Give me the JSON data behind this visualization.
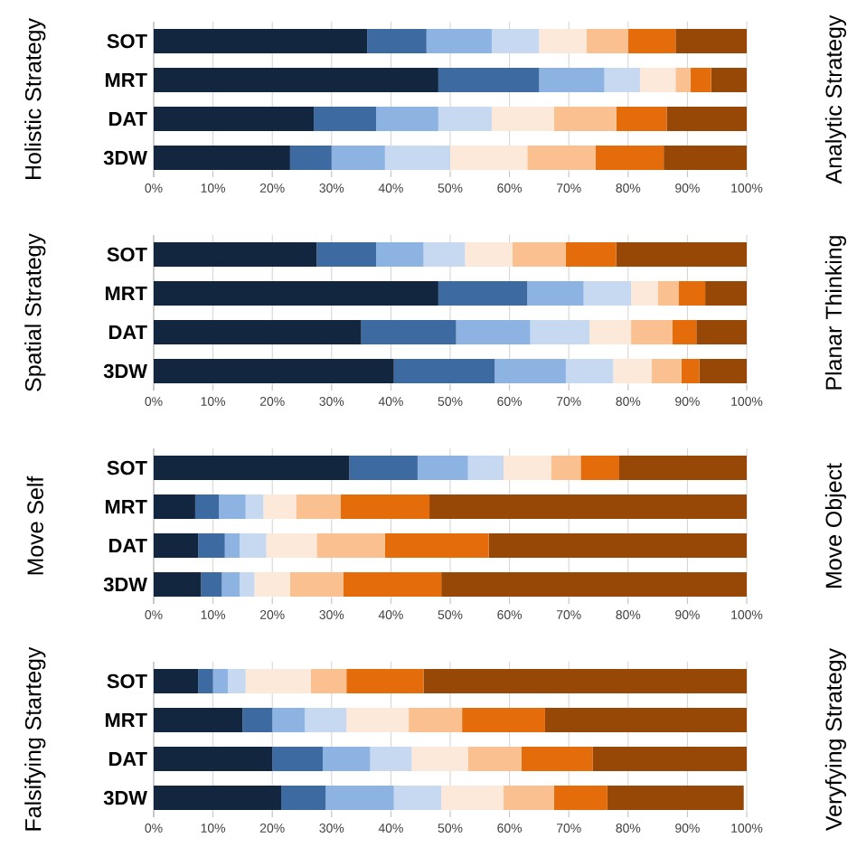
{
  "chart_data": [
    {
      "type": "bar",
      "orientation": "horizontal",
      "stacked": true,
      "grid": "x",
      "ylabel": "Holistic Strategy",
      "y2label": "Analytic Strategy",
      "categories": [
        "SOT",
        "MRT",
        "DAT",
        "3DW"
      ],
      "xlim": [
        0,
        100
      ],
      "xticks": [
        {
          "value": 0,
          "label": "0%"
        },
        {
          "value": 10,
          "label": "10%"
        },
        {
          "value": 20,
          "label": "20%"
        },
        {
          "value": 30,
          "label": "30%"
        },
        {
          "value": 40,
          "label": "40%"
        },
        {
          "value": 50,
          "label": "50%"
        },
        {
          "value": 60,
          "label": "60%"
        },
        {
          "value": 70,
          "label": "70%"
        },
        {
          "value": 80,
          "label": "80%"
        },
        {
          "value": 90,
          "label": "90%"
        },
        {
          "value": 100,
          "label": "100%"
        }
      ],
      "series": [
        {
          "color": "#12263f",
          "values": [
            36,
            48,
            27,
            23
          ]
        },
        {
          "color": "#3d6aa0",
          "values": [
            10,
            17,
            10.5,
            7
          ]
        },
        {
          "color": "#8db3e2",
          "values": [
            11,
            11,
            10.5,
            9
          ]
        },
        {
          "color": "#c6d9f1",
          "values": [
            8,
            6,
            9,
            11
          ]
        },
        {
          "color": "#fde9d9",
          "values": [
            8,
            6,
            10.5,
            13
          ]
        },
        {
          "color": "#fac090",
          "values": [
            7,
            2.5,
            10.5,
            11.5
          ]
        },
        {
          "color": "#e46c0a",
          "values": [
            8,
            3.5,
            8.5,
            11.5
          ]
        },
        {
          "color": "#974806",
          "values": [
            12,
            6,
            13.5,
            14
          ]
        }
      ]
    },
    {
      "type": "bar",
      "orientation": "horizontal",
      "stacked": true,
      "grid": "x",
      "ylabel": "Spatial Strategy",
      "y2label": "Planar Thinking",
      "categories": [
        "SOT",
        "MRT",
        "DAT",
        "3DW"
      ],
      "xlim": [
        0,
        100
      ],
      "xticks": [
        {
          "value": 0,
          "label": "0%"
        },
        {
          "value": 10,
          "label": "10%"
        },
        {
          "value": 20,
          "label": "20%"
        },
        {
          "value": 30,
          "label": "30%"
        },
        {
          "value": 40,
          "label": "40%"
        },
        {
          "value": 50,
          "label": "50%"
        },
        {
          "value": 60,
          "label": "60%"
        },
        {
          "value": 70,
          "label": "70%"
        },
        {
          "value": 80,
          "label": "80%"
        },
        {
          "value": 90,
          "label": "90%"
        },
        {
          "value": 100,
          "label": "100%"
        }
      ],
      "series": [
        {
          "color": "#12263f",
          "values": [
            27.5,
            48,
            35,
            40.5
          ]
        },
        {
          "color": "#3d6aa0",
          "values": [
            10,
            15,
            16,
            17
          ]
        },
        {
          "color": "#8db3e2",
          "values": [
            8,
            9.5,
            12.5,
            12
          ]
        },
        {
          "color": "#c6d9f1",
          "values": [
            7,
            8,
            10,
            8
          ]
        },
        {
          "color": "#fde9d9",
          "values": [
            8,
            4.5,
            7,
            6.5
          ]
        },
        {
          "color": "#fac090",
          "values": [
            9,
            3.5,
            7,
            5
          ]
        },
        {
          "color": "#e46c0a",
          "values": [
            8.5,
            4.5,
            4,
            3
          ]
        },
        {
          "color": "#974806",
          "values": [
            22,
            7,
            8.5,
            8
          ]
        }
      ]
    },
    {
      "type": "bar",
      "orientation": "horizontal",
      "stacked": true,
      "grid": "x",
      "ylabel": "Move Self",
      "y2label": "Move Object",
      "categories": [
        "SOT",
        "MRT",
        "DAT",
        "3DW"
      ],
      "xlim": [
        0,
        100
      ],
      "xticks": [
        {
          "value": 0,
          "label": "0%"
        },
        {
          "value": 10,
          "label": "10%"
        },
        {
          "value": 20,
          "label": "20%"
        },
        {
          "value": 30,
          "label": "30%"
        },
        {
          "value": 40,
          "label": "40%"
        },
        {
          "value": 50,
          "label": "50%"
        },
        {
          "value": 60,
          "label": "60%"
        },
        {
          "value": 70,
          "label": "70%"
        },
        {
          "value": 80,
          "label": "80%"
        },
        {
          "value": 90,
          "label": "90%"
        },
        {
          "value": 100,
          "label": "100%"
        }
      ],
      "series": [
        {
          "color": "#12263f",
          "values": [
            33,
            7,
            7.5,
            8
          ]
        },
        {
          "color": "#3d6aa0",
          "values": [
            11.5,
            4,
            4.5,
            3.5
          ]
        },
        {
          "color": "#8db3e2",
          "values": [
            8.5,
            4.5,
            2.5,
            3
          ]
        },
        {
          "color": "#c6d9f1",
          "values": [
            6,
            3,
            4.5,
            2.5
          ]
        },
        {
          "color": "#fde9d9",
          "values": [
            8,
            5.5,
            8.5,
            6
          ]
        },
        {
          "color": "#fac090",
          "values": [
            5,
            7.5,
            11.5,
            9
          ]
        },
        {
          "color": "#e46c0a",
          "values": [
            6.5,
            15,
            17.5,
            16.5
          ]
        },
        {
          "color": "#974806",
          "values": [
            21.5,
            53.5,
            43.5,
            51.5
          ]
        }
      ]
    },
    {
      "type": "bar",
      "orientation": "horizontal",
      "stacked": true,
      "grid": "x",
      "ylabel": "Falsifying Startegy",
      "y2label": "Veryfying Strategy",
      "categories": [
        "SOT",
        "MRT",
        "DAT",
        "3DW"
      ],
      "xlim": [
        0,
        100
      ],
      "xticks": [
        {
          "value": 0,
          "label": "0%"
        },
        {
          "value": 10,
          "label": "10%"
        },
        {
          "value": 20,
          "label": "20%"
        },
        {
          "value": 30,
          "label": "30%"
        },
        {
          "value": 40,
          "label": "40%"
        },
        {
          "value": 50,
          "label": "50%"
        },
        {
          "value": 60,
          "label": "60%"
        },
        {
          "value": 70,
          "label": "70%"
        },
        {
          "value": 80,
          "label": "80%"
        },
        {
          "value": 90,
          "label": "90%"
        },
        {
          "value": 100,
          "label": "100%"
        }
      ],
      "series": [
        {
          "color": "#12263f",
          "values": [
            7.5,
            15,
            20,
            21.5
          ]
        },
        {
          "color": "#3d6aa0",
          "values": [
            2.5,
            5,
            8.5,
            7.5
          ]
        },
        {
          "color": "#8db3e2",
          "values": [
            2.5,
            5.5,
            8,
            11.5
          ]
        },
        {
          "color": "#c6d9f1",
          "values": [
            3,
            7,
            7,
            8
          ]
        },
        {
          "color": "#fde9d9",
          "values": [
            11,
            10.5,
            9.5,
            10.5
          ]
        },
        {
          "color": "#fac090",
          "values": [
            6,
            9,
            9,
            8.5
          ]
        },
        {
          "color": "#e46c0a",
          "values": [
            13,
            14,
            12,
            9
          ]
        },
        {
          "color": "#974806",
          "values": [
            54.5,
            34,
            26,
            23
          ]
        }
      ]
    }
  ]
}
